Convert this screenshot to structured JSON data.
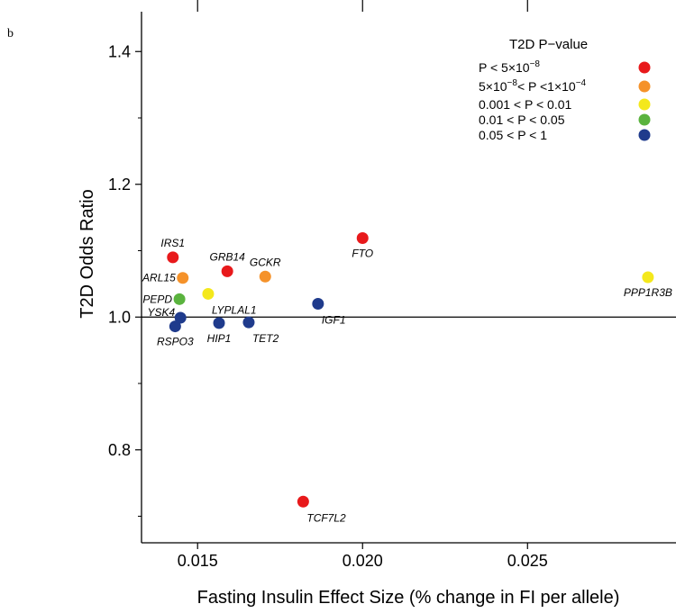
{
  "panel_letter": "b",
  "chart_data": {
    "type": "scatter",
    "xlabel": "Fasting Insulin Effect Size (% change in FI per allele)",
    "ylabel": "T2D Odds Ratio",
    "xlim": [
      0.0133,
      0.0295
    ],
    "ylim": [
      0.66,
      1.46
    ],
    "x_ticks": [
      0.015,
      0.02,
      0.025
    ],
    "x_tick_labels": [
      "0.015",
      "0.020",
      "0.025"
    ],
    "y_ticks": [
      0.8,
      1.0,
      1.2,
      1.4
    ],
    "y_tick_labels": [
      "0.8",
      "1.0",
      "1.2",
      "1.4"
    ],
    "y_minor_ticks": [
      0.7,
      0.9,
      1.1,
      1.3
    ],
    "x_top_ticks": [
      0.015,
      0.02,
      0.025
    ],
    "reference_line_y": 1.0,
    "grid": false,
    "legend": {
      "title": "T2D P−value",
      "placement": "top-right",
      "entries": [
        {
          "key": "p1",
          "label": "P < 5×10",
          "sup": "−8",
          "tail": "",
          "color": "#e8191b"
        },
        {
          "key": "p2",
          "label": "5×10",
          "sup": "−8",
          "tail": "< P <1×10",
          "sup2": "−4",
          "color": "#f5922a"
        },
        {
          "key": "p3",
          "label": "0.001 < P < 0.01",
          "color": "#f4e81c"
        },
        {
          "key": "p4",
          "label": "0.01 < P < 0.05",
          "color": "#5ab33e"
        },
        {
          "key": "p5",
          "label": "0.05 < P < 1",
          "color": "#1f3b8c"
        }
      ]
    },
    "points": [
      {
        "gene": "IRS1",
        "x": 0.01425,
        "y": 1.09,
        "p": "p1",
        "label_pos": "above"
      },
      {
        "gene": "ARL15",
        "x": 0.01455,
        "y": 1.059,
        "p": "p2",
        "label_pos": "left"
      },
      {
        "gene": "PEPD",
        "x": 0.01445,
        "y": 1.027,
        "p": "p4",
        "label_pos": "left"
      },
      {
        "gene": "YSK4",
        "x": 0.01448,
        "y": 0.999,
        "p": "p5",
        "label_pos": "left-up"
      },
      {
        "gene": "RSPO3",
        "x": 0.01432,
        "y": 0.986,
        "p": "p5",
        "label_pos": "below"
      },
      {
        "gene": "LYPLAL1",
        "x": 0.01532,
        "y": 1.035,
        "p": "p3",
        "label_pos": "below-right"
      },
      {
        "gene": "GRB14",
        "x": 0.0159,
        "y": 1.069,
        "p": "p1",
        "label_pos": "above"
      },
      {
        "gene": "HIP1",
        "x": 0.01565,
        "y": 0.991,
        "p": "p5",
        "label_pos": "below"
      },
      {
        "gene": "TET2",
        "x": 0.01655,
        "y": 0.992,
        "p": "p5",
        "label_pos": "below-right"
      },
      {
        "gene": "GCKR",
        "x": 0.01705,
        "y": 1.061,
        "p": "p2",
        "label_pos": "above"
      },
      {
        "gene": "IGF1",
        "x": 0.01865,
        "y": 1.02,
        "p": "p5",
        "label_pos": "below-right"
      },
      {
        "gene": "FTO",
        "x": 0.02,
        "y": 1.119,
        "p": "p1",
        "label_pos": "below"
      },
      {
        "gene": "TCF7L2",
        "x": 0.0182,
        "y": 0.722,
        "p": "p1",
        "label_pos": "below-right"
      },
      {
        "gene": "PPP1R3B",
        "x": 0.02865,
        "y": 1.06,
        "p": "p3",
        "label_pos": "below"
      }
    ]
  }
}
